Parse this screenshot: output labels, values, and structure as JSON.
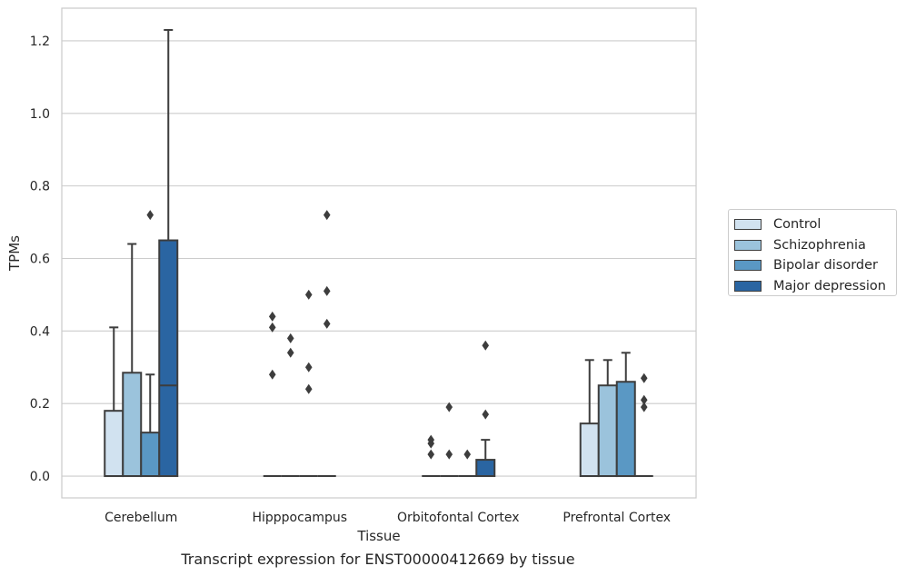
{
  "chart_data": {
    "type": "box",
    "categories": [
      "Cerebellum",
      "Hipppocampus",
      "Orbitofontal Cortex",
      "Prefrontal Cortex"
    ],
    "xlabel": "Tissue",
    "ylabel": "TPMs",
    "ylim": [
      -0.06,
      1.29
    ],
    "yticks": [
      0.0,
      0.2,
      0.4,
      0.6,
      0.8,
      1.0,
      1.2
    ],
    "ytick_labels": [
      "0.0",
      "0.2",
      "0.4",
      "0.6",
      "0.8",
      "1.0",
      "1.2"
    ],
    "grid": true,
    "legend_position": "right",
    "series": [
      {
        "name": "Control",
        "color": "#d1e2f0",
        "boxes": [
          {
            "q1": 0.0,
            "median": 0.0,
            "q3": 0.18,
            "whisker_low": 0.0,
            "whisker_high": 0.41,
            "outliers": []
          },
          {
            "q1": 0.0,
            "median": 0.0,
            "q3": 0.0,
            "whisker_low": 0.0,
            "whisker_high": 0.0,
            "outliers": [
              0.28,
              0.41,
              0.44
            ]
          },
          {
            "q1": 0.0,
            "median": 0.0,
            "q3": 0.0,
            "whisker_low": 0.0,
            "whisker_high": 0.0,
            "outliers": [
              0.06,
              0.09,
              0.1
            ]
          },
          {
            "q1": 0.0,
            "median": 0.0,
            "q3": 0.145,
            "whisker_low": 0.0,
            "whisker_high": 0.32,
            "outliers": []
          }
        ]
      },
      {
        "name": "Schizophrenia",
        "color": "#9bc3dc",
        "boxes": [
          {
            "q1": 0.0,
            "median": 0.0,
            "q3": 0.285,
            "whisker_low": 0.0,
            "whisker_high": 0.64,
            "outliers": []
          },
          {
            "q1": 0.0,
            "median": 0.0,
            "q3": 0.0,
            "whisker_low": 0.0,
            "whisker_high": 0.0,
            "outliers": [
              0.34,
              0.38
            ]
          },
          {
            "q1": 0.0,
            "median": 0.0,
            "q3": 0.0,
            "whisker_low": 0.0,
            "whisker_high": 0.0,
            "outliers": [
              0.06,
              0.19
            ]
          },
          {
            "q1": 0.0,
            "median": 0.0,
            "q3": 0.25,
            "whisker_low": 0.0,
            "whisker_high": 0.32,
            "outliers": []
          }
        ]
      },
      {
        "name": "Bipolar disorder",
        "color": "#5a98c4",
        "boxes": [
          {
            "q1": 0.0,
            "median": 0.0,
            "q3": 0.12,
            "whisker_low": 0.0,
            "whisker_high": 0.28,
            "outliers": [
              0.72
            ]
          },
          {
            "q1": 0.0,
            "median": 0.0,
            "q3": 0.0,
            "whisker_low": 0.0,
            "whisker_high": 0.0,
            "outliers": [
              0.24,
              0.3,
              0.5
            ]
          },
          {
            "q1": 0.0,
            "median": 0.0,
            "q3": 0.0,
            "whisker_low": 0.0,
            "whisker_high": 0.0,
            "outliers": [
              0.06
            ]
          },
          {
            "q1": 0.0,
            "median": 0.0,
            "q3": 0.26,
            "whisker_low": 0.0,
            "whisker_high": 0.34,
            "outliers": []
          }
        ]
      },
      {
        "name": "Major depression",
        "color": "#2a65a2",
        "boxes": [
          {
            "q1": 0.0,
            "median": 0.25,
            "q3": 0.65,
            "whisker_low": 0.0,
            "whisker_high": 1.23,
            "outliers": []
          },
          {
            "q1": 0.0,
            "median": 0.0,
            "q3": 0.0,
            "whisker_low": 0.0,
            "whisker_high": 0.0,
            "outliers": [
              0.42,
              0.51,
              0.72
            ]
          },
          {
            "q1": 0.0,
            "median": 0.0,
            "q3": 0.045,
            "whisker_low": 0.0,
            "whisker_high": 0.1,
            "outliers": [
              0.17,
              0.36
            ]
          },
          {
            "q1": 0.0,
            "median": 0.0,
            "q3": 0.0,
            "whisker_low": 0.0,
            "whisker_high": 0.0,
            "outliers": [
              0.19,
              0.21,
              0.27
            ]
          }
        ]
      }
    ],
    "caption": "Transcript expression for ENST00000412669 by tissue"
  }
}
